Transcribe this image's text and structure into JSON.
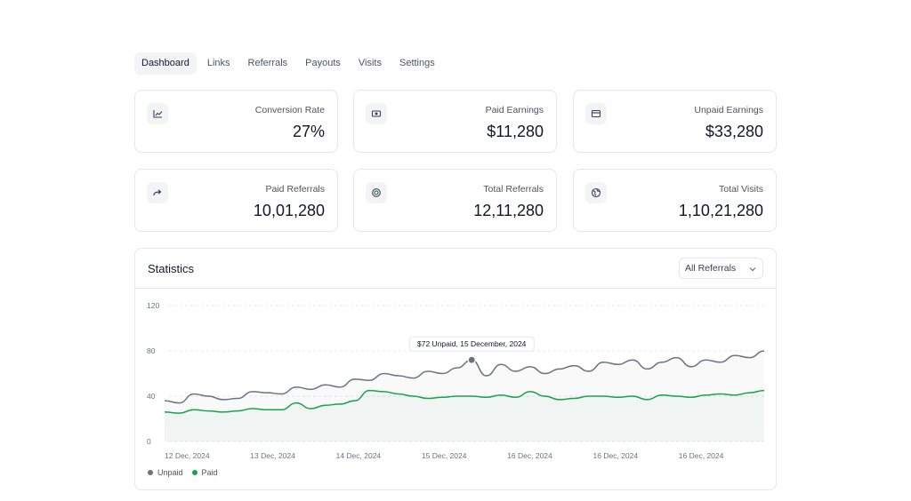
{
  "tabs": [
    {
      "label": "Dashboard",
      "active": true
    },
    {
      "label": "Links",
      "active": false
    },
    {
      "label": "Referrals",
      "active": false
    },
    {
      "label": "Payouts",
      "active": false
    },
    {
      "label": "Visits",
      "active": false
    },
    {
      "label": "Settings",
      "active": false
    }
  ],
  "cards": [
    {
      "icon": "chart-line-icon",
      "label": "Conversion Rate",
      "value": "27%"
    },
    {
      "icon": "banknote-icon",
      "label": "Paid Earnings",
      "value": "$11,280"
    },
    {
      "icon": "wallet-icon",
      "label": "Unpaid Earnings",
      "value": "$33,280"
    },
    {
      "icon": "forward-arrow-icon",
      "label": "Paid Referrals",
      "value": "10,01,280"
    },
    {
      "icon": "refresh-circle-icon",
      "label": "Total Referrals",
      "value": "12,11,280"
    },
    {
      "icon": "globe-icon",
      "label": "Total Visits",
      "value": "1,10,21,280"
    }
  ],
  "statistics": {
    "title": "Statistics",
    "filter": {
      "selected": "All Referrals"
    },
    "legend": [
      {
        "name": "Unpaid",
        "color": "#6b7280"
      },
      {
        "name": "Paid",
        "color": "#16a34a"
      }
    ],
    "tooltip": "$72 Unpaid, 15 December, 2024"
  },
  "chart_data": {
    "type": "line",
    "x_ticks": [
      "12 Dec, 2024",
      "13 Dec, 2024",
      "14 Dec, 2024",
      "15 Dec, 2024",
      "16 Dec, 2024",
      "16 Dec, 2024",
      "16 Dec, 2024"
    ],
    "y_ticks": [
      0,
      40,
      80,
      120
    ],
    "ylim": [
      0,
      120
    ],
    "grid": true,
    "legend_position": "bottom-left",
    "series": [
      {
        "name": "Unpaid",
        "color": "#6b7280",
        "values": [
          36,
          34,
          42,
          40,
          37,
          38,
          44,
          43,
          42,
          48,
          46,
          50,
          48,
          55,
          54,
          60,
          58,
          56,
          62,
          60,
          65,
          72,
          58,
          68,
          62,
          66,
          60,
          64,
          67,
          62,
          70,
          68,
          72,
          64,
          70,
          74,
          66,
          72,
          70,
          76,
          74,
          80
        ]
      },
      {
        "name": "Paid",
        "color": "#16a34a",
        "values": [
          26,
          25,
          28,
          27,
          26,
          27,
          29,
          28,
          28,
          34,
          29,
          32,
          33,
          36,
          45,
          44,
          42,
          40,
          38,
          39,
          40,
          40,
          39,
          41,
          39,
          44,
          40,
          37,
          38,
          40,
          40,
          39,
          40,
          37,
          41,
          40,
          39,
          41,
          42,
          41,
          43,
          45
        ]
      }
    ],
    "highlight": {
      "series": "Unpaid",
      "index": 21,
      "value": 72
    }
  }
}
